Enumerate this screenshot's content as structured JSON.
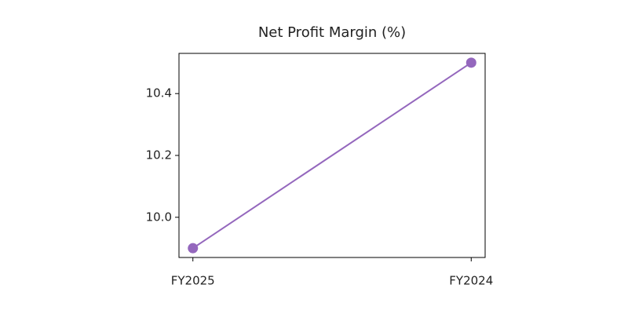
{
  "chart_data": {
    "type": "line",
    "title": "Net Profit Margin (%)",
    "categories": [
      "FY2025",
      "FY2024"
    ],
    "values": [
      9.9,
      10.5
    ],
    "color": "#9467bd",
    "ylim": [
      9.87,
      10.53
    ],
    "yticks": [
      {
        "value": 10,
        "label": "10.0"
      },
      10.2,
      10.4
    ]
  }
}
